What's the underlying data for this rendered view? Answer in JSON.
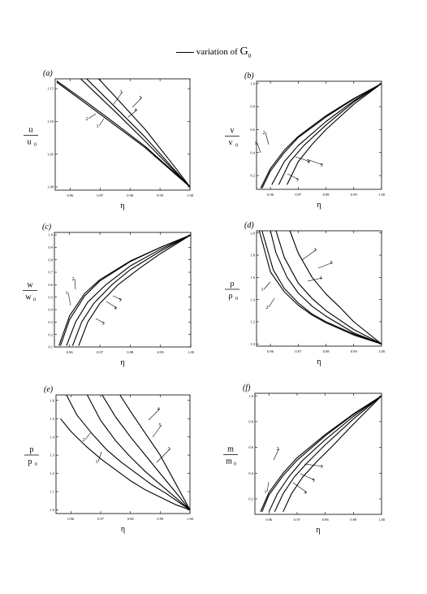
{
  "caption": {
    "prefix": "variation of ",
    "symbol": "G",
    "subscript": "0"
  },
  "chart_data": [
    {
      "type": "line",
      "panel": "(a)",
      "ylabel": {
        "num": "u",
        "den": "u",
        "sub": "0"
      },
      "xlabel": "η",
      "xlim": [
        0.955,
        1.0
      ],
      "ylim": [
        0.995,
        1.165
      ],
      "xticks": [
        0.96,
        0.97,
        0.98,
        0.99,
        1.0
      ],
      "xtick_labels": [
        "0.96",
        "0.97",
        "0.98",
        "0.99",
        "1.00"
      ],
      "yticks": [
        1.0,
        1.05,
        1.1,
        1.15
      ],
      "ytick_labels": [
        "1.00",
        "1.05",
        "1.10",
        "1.15"
      ],
      "series": [
        {
          "label": "1",
          "x": [
            0.9555,
            0.965,
            0.975,
            0.985,
            0.995,
            1.0
          ],
          "y": [
            1.16,
            1.128,
            1.094,
            1.06,
            1.02,
            1.0
          ]
        },
        {
          "label": "2",
          "x": [
            0.9555,
            0.965,
            0.975,
            0.985,
            0.995,
            1.0
          ],
          "y": [
            1.162,
            1.131,
            1.097,
            1.062,
            1.021,
            1.0
          ]
        },
        {
          "label": "3",
          "x": [
            0.9655,
            0.975,
            0.985,
            0.995,
            1.0
          ],
          "y": [
            1.165,
            1.122,
            1.076,
            1.025,
            1.0
          ]
        },
        {
          "label": "4",
          "x": [
            0.9695,
            0.975,
            0.985,
            0.995,
            1.0
          ],
          "y": [
            1.165,
            1.138,
            1.088,
            1.03,
            1.0
          ]
        },
        {
          "label": "5",
          "x": [
            0.9635,
            0.975,
            0.985,
            0.995,
            1.0
          ],
          "y": [
            1.165,
            1.115,
            1.07,
            1.023,
            1.0
          ]
        }
      ],
      "annotations": [
        {
          "text": "1"
        },
        {
          "text": "2"
        },
        {
          "text": "3"
        },
        {
          "text": "4"
        },
        {
          "text": "5"
        }
      ]
    },
    {
      "type": "line",
      "panel": "(b)",
      "ylabel": {
        "num": "v",
        "den": "v",
        "sub": "0"
      },
      "xlabel": "η",
      "xlim": [
        0.955,
        1.0
      ],
      "ylim": [
        0.08,
        1.02
      ],
      "xticks": [
        0.96,
        0.97,
        0.98,
        0.99,
        1.0
      ],
      "xtick_labels": [
        "0.96",
        "0.97",
        "0.98",
        "0.99",
        "1.00"
      ],
      "yticks": [
        0.2,
        0.4,
        0.6,
        0.8,
        1.0
      ],
      "ytick_labels": [
        "0.2",
        "0.4",
        "0.6",
        "0.8",
        "1.0"
      ],
      "series": [
        {
          "label": "1",
          "x": [
            0.9565,
            0.96,
            0.965,
            0.97,
            0.98,
            0.99,
            1.0
          ],
          "y": [
            0.09,
            0.26,
            0.42,
            0.54,
            0.72,
            0.87,
            1.0
          ]
        },
        {
          "label": "2",
          "x": [
            0.957,
            0.96,
            0.965,
            0.97,
            0.98,
            0.99,
            1.0
          ],
          "y": [
            0.09,
            0.24,
            0.4,
            0.53,
            0.71,
            0.865,
            1.0
          ]
        },
        {
          "label": "3",
          "x": [
            0.9605,
            0.965,
            0.97,
            0.98,
            0.99,
            1.0
          ],
          "y": [
            0.12,
            0.32,
            0.46,
            0.67,
            0.85,
            1.0
          ]
        },
        {
          "label": "4",
          "x": [
            0.963,
            0.967,
            0.972,
            0.98,
            0.99,
            1.0
          ],
          "y": [
            0.12,
            0.32,
            0.46,
            0.64,
            0.84,
            1.0
          ]
        },
        {
          "label": "5",
          "x": [
            0.966,
            0.97,
            0.975,
            0.98,
            0.99,
            1.0
          ],
          "y": [
            0.12,
            0.32,
            0.47,
            0.6,
            0.82,
            1.0
          ]
        }
      ],
      "annotations": [
        {
          "text": "1"
        },
        {
          "text": "2"
        },
        {
          "text": "3"
        },
        {
          "text": "4"
        },
        {
          "text": "5"
        }
      ]
    },
    {
      "type": "line",
      "panel": "(c)",
      "ylabel": {
        "num": "w",
        "den": "w",
        "sub": "0"
      },
      "xlabel": "η",
      "xlim": [
        0.955,
        1.0
      ],
      "ylim": [
        0.1,
        1.02
      ],
      "xticks": [
        0.96,
        0.97,
        0.98,
        0.99,
        1.0
      ],
      "xtick_labels": [
        "0.96",
        "0.97",
        "0.98",
        "0.99",
        "1.00"
      ],
      "yticks": [
        0.1,
        0.2,
        0.3,
        0.4,
        0.5,
        0.6,
        0.7,
        0.8,
        0.9,
        1.0
      ],
      "ytick_labels": [
        "0.1",
        "0.2",
        "0.3",
        "0.4",
        "0.5",
        "0.6",
        "0.7",
        "0.8",
        "0.9",
        "1.0"
      ],
      "series": [
        {
          "label": "1",
          "x": [
            0.9565,
            0.96,
            0.965,
            0.97,
            0.98,
            0.99,
            1.0
          ],
          "y": [
            0.11,
            0.35,
            0.53,
            0.64,
            0.79,
            0.9,
            1.0
          ]
        },
        {
          "label": "2",
          "x": [
            0.957,
            0.96,
            0.965,
            0.97,
            0.98,
            0.99,
            1.0
          ],
          "y": [
            0.11,
            0.32,
            0.51,
            0.63,
            0.785,
            0.9,
            1.0
          ]
        },
        {
          "label": "3",
          "x": [
            0.959,
            0.962,
            0.966,
            0.972,
            0.98,
            0.99,
            1.0
          ],
          "y": [
            0.11,
            0.3,
            0.46,
            0.6,
            0.75,
            0.885,
            1.0
          ]
        },
        {
          "label": "4",
          "x": [
            0.961,
            0.964,
            0.968,
            0.974,
            0.98,
            0.99,
            1.0
          ],
          "y": [
            0.11,
            0.3,
            0.45,
            0.6,
            0.72,
            0.87,
            1.0
          ]
        },
        {
          "label": "5",
          "x": [
            0.963,
            0.966,
            0.97,
            0.976,
            0.983,
            0.99,
            1.0
          ],
          "y": [
            0.11,
            0.3,
            0.45,
            0.6,
            0.73,
            0.85,
            1.0
          ]
        }
      ],
      "annotations": [
        {
          "text": "1"
        },
        {
          "text": "2"
        },
        {
          "text": "3"
        },
        {
          "text": "4"
        },
        {
          "text": "5"
        }
      ]
    },
    {
      "type": "line",
      "panel": "(d)",
      "ylabel": {
        "num": "ρ",
        "den": "ρ",
        "sub": "0"
      },
      "xlabel": "η",
      "xlim": [
        0.955,
        1.0
      ],
      "ylim": [
        0.98,
        2.02
      ],
      "xticks": [
        0.96,
        0.97,
        0.98,
        0.99,
        1.0
      ],
      "xtick_labels": [
        "0.96",
        "0.97",
        "0.98",
        "0.99",
        "1.00"
      ],
      "yticks": [
        1.0,
        1.2,
        1.4,
        1.6,
        1.8,
        2.0
      ],
      "ytick_labels": [
        "1.0",
        "1.2",
        "1.4",
        "1.6",
        "1.8",
        "2.0"
      ],
      "series": [
        {
          "label": "1",
          "x": [
            0.956,
            0.96,
            0.965,
            0.97,
            0.975,
            0.98,
            0.99,
            1.0
          ],
          "y": [
            2.02,
            1.65,
            1.47,
            1.35,
            1.26,
            1.19,
            1.08,
            1.0
          ]
        },
        {
          "label": "2",
          "x": [
            0.957,
            0.961,
            0.965,
            0.97,
            0.975,
            0.98,
            0.99,
            1.0
          ],
          "y": [
            2.02,
            1.67,
            1.5,
            1.37,
            1.27,
            1.2,
            1.09,
            1.0
          ]
        },
        {
          "label": "3",
          "x": [
            0.96,
            0.962,
            0.966,
            0.97,
            0.975,
            0.98,
            0.99,
            1.0
          ],
          "y": [
            2.02,
            1.82,
            1.6,
            1.46,
            1.34,
            1.25,
            1.1,
            1.0
          ]
        },
        {
          "label": "4",
          "x": [
            0.962,
            0.965,
            0.97,
            0.975,
            0.98,
            0.99,
            1.0
          ],
          "y": [
            2.02,
            1.78,
            1.55,
            1.41,
            1.3,
            1.13,
            1.0
          ]
        },
        {
          "label": "5",
          "x": [
            0.967,
            0.97,
            0.975,
            0.98,
            0.985,
            0.99,
            1.0
          ],
          "y": [
            2.02,
            1.82,
            1.6,
            1.45,
            1.33,
            1.2,
            1.0
          ]
        }
      ],
      "annotations": [
        {
          "text": "1"
        },
        {
          "text": "2"
        },
        {
          "text": "3"
        },
        {
          "text": "4"
        },
        {
          "text": "5"
        }
      ]
    },
    {
      "type": "line",
      "panel": "(e)",
      "ylabel": {
        "num": "p",
        "den": "p",
        "sub": "0"
      },
      "xlabel": "η",
      "xlim": [
        0.955,
        1.0
      ],
      "ylim": [
        0.98,
        1.63
      ],
      "xticks": [
        0.96,
        0.97,
        0.98,
        0.99,
        1.0
      ],
      "xtick_labels": [
        "0.96",
        "0.97",
        "0.98",
        "0.99",
        "1.00"
      ],
      "yticks": [
        1.0,
        1.1,
        1.2,
        1.3,
        1.4,
        1.5,
        1.6
      ],
      "ytick_labels": [
        "1.0",
        "1.1",
        "1.2",
        "1.3",
        "1.4",
        "1.5",
        "1.6"
      ],
      "series": [
        {
          "label": "1",
          "x": [
            0.9565,
            0.96,
            0.965,
            0.97,
            0.975,
            0.98,
            0.985,
            0.99,
            0.995,
            1.0
          ],
          "y": [
            1.5,
            1.43,
            1.35,
            1.28,
            1.22,
            1.16,
            1.11,
            1.07,
            1.03,
            1.0
          ]
        },
        {
          "label": "2",
          "x": [
            0.9585,
            0.962,
            0.967,
            0.972,
            0.977,
            0.982,
            0.987,
            0.992,
            1.0
          ],
          "y": [
            1.63,
            1.52,
            1.42,
            1.33,
            1.26,
            1.2,
            1.14,
            1.09,
            1.0
          ]
        },
        {
          "label": "3",
          "x": [
            0.9655,
            0.97,
            0.975,
            0.98,
            0.985,
            0.99,
            0.995,
            1.0
          ],
          "y": [
            1.63,
            1.49,
            1.38,
            1.29,
            1.21,
            1.14,
            1.07,
            1.0
          ]
        },
        {
          "label": "4",
          "x": [
            0.9705,
            0.975,
            0.98,
            0.985,
            0.99,
            0.995,
            1.0
          ],
          "y": [
            1.63,
            1.51,
            1.4,
            1.3,
            1.2,
            1.1,
            1.0
          ]
        },
        {
          "label": "5",
          "x": [
            0.9765,
            0.98,
            0.985,
            0.99,
            0.995,
            1.0
          ],
          "y": [
            1.63,
            1.54,
            1.42,
            1.3,
            1.15,
            1.0
          ]
        }
      ],
      "annotations": [
        {
          "text": "1"
        },
        {
          "text": "2"
        },
        {
          "text": "3"
        },
        {
          "text": "4"
        },
        {
          "text": "5"
        }
      ]
    },
    {
      "type": "line",
      "panel": "(f)",
      "ylabel": {
        "num": "m",
        "den": "m",
        "sub": "0"
      },
      "xlabel": "η",
      "xlim": [
        0.955,
        1.0
      ],
      "ylim": [
        0.08,
        1.02
      ],
      "xticks": [
        0.96,
        0.97,
        0.98,
        0.99,
        1.0
      ],
      "xtick_labels": [
        "0.96",
        "0.97",
        "0.98",
        "0.99",
        "1.00"
      ],
      "yticks": [
        0.2,
        0.4,
        0.6,
        0.8,
        1.0
      ],
      "ytick_labels": [
        "0.2",
        "0.4",
        "0.6",
        "0.8",
        "1.0"
      ],
      "series": [
        {
          "label": "1",
          "x": [
            0.957,
            0.96,
            0.965,
            0.97,
            0.98,
            0.99,
            1.0
          ],
          "y": [
            0.1,
            0.25,
            0.4,
            0.52,
            0.7,
            0.86,
            1.0
          ]
        },
        {
          "label": "2",
          "x": [
            0.9575,
            0.96,
            0.965,
            0.97,
            0.98,
            0.99,
            1.0
          ],
          "y": [
            0.1,
            0.23,
            0.38,
            0.5,
            0.69,
            0.855,
            1.0
          ]
        },
        {
          "label": "3",
          "x": [
            0.96,
            0.963,
            0.967,
            0.972,
            0.98,
            0.99,
            1.0
          ],
          "y": [
            0.1,
            0.24,
            0.37,
            0.5,
            0.66,
            0.84,
            1.0
          ]
        },
        {
          "label": "4",
          "x": [
            0.962,
            0.965,
            0.969,
            0.974,
            0.98,
            0.99,
            1.0
          ],
          "y": [
            0.1,
            0.24,
            0.37,
            0.49,
            0.62,
            0.82,
            1.0
          ]
        },
        {
          "label": "5",
          "x": [
            0.965,
            0.968,
            0.972,
            0.977,
            0.983,
            0.99,
            1.0
          ],
          "y": [
            0.1,
            0.24,
            0.37,
            0.49,
            0.62,
            0.78,
            1.0
          ]
        }
      ],
      "annotations": [
        {
          "text": "1"
        },
        {
          "text": "2"
        },
        {
          "text": "3"
        },
        {
          "text": "4"
        },
        {
          "text": "5"
        }
      ]
    }
  ]
}
